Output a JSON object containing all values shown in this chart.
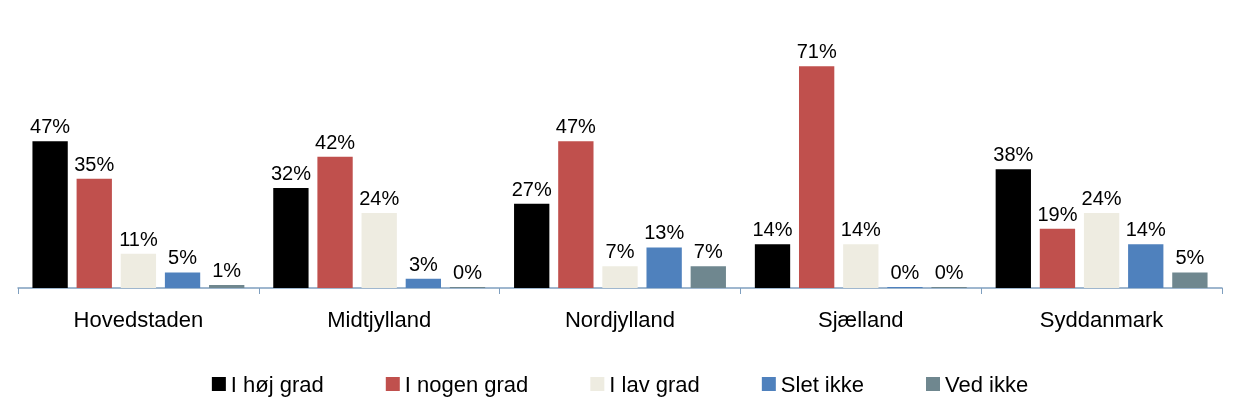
{
  "chart_data": {
    "type": "bar",
    "categories": [
      "Hovedstaden",
      "Midtjylland",
      "Nordjylland",
      "Sjælland",
      "Syddanmark"
    ],
    "series": [
      {
        "name": "I høj grad",
        "color": "#000000",
        "values": [
          47,
          32,
          27,
          14,
          38
        ],
        "value_labels": [
          "47%",
          "32%",
          "27%",
          "14%",
          "38%"
        ]
      },
      {
        "name": "I nogen grad",
        "color": "#c0504d",
        "values": [
          35,
          42,
          47,
          71,
          19
        ],
        "value_labels": [
          "35%",
          "42%",
          "47%",
          "71%",
          "19%"
        ]
      },
      {
        "name": "I lav grad",
        "color": "#eeece1",
        "values": [
          11,
          24,
          7,
          14,
          24
        ],
        "value_labels": [
          "11%",
          "24%",
          "7%",
          "14%",
          "24%"
        ]
      },
      {
        "name": "Slet ikke",
        "color": "#4f81bd",
        "values": [
          5,
          3,
          13,
          0,
          14
        ],
        "value_labels": [
          "5%",
          "3%",
          "13%",
          "0%",
          "14%"
        ]
      },
      {
        "name": "Ved ikke",
        "color": "#6f878f",
        "values": [
          1,
          0,
          7,
          0,
          5
        ],
        "value_labels": [
          "1%",
          "0%",
          "7%",
          "0%",
          "5%"
        ]
      }
    ],
    "legend": "bottom"
  }
}
